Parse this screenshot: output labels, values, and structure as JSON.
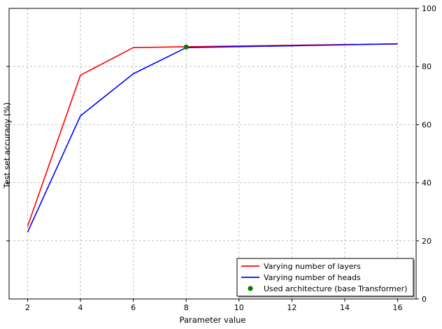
{
  "chart_data": {
    "type": "line",
    "xlabel": "Parameter value",
    "ylabel": "Test set accuracy (%)",
    "xlim": [
      1.3,
      16.7
    ],
    "ylim": [
      0,
      100
    ],
    "x_ticks": [
      2,
      4,
      6,
      8,
      10,
      12,
      14,
      16
    ],
    "y_ticks": [
      20,
      40,
      60,
      80
    ],
    "y_ticks_right": [
      0,
      20,
      40,
      60,
      80,
      100
    ],
    "grid": true,
    "legend_position": "lower-right",
    "series": [
      {
        "name": "Varying number of layers",
        "color": "#ff0000",
        "x": [
          2,
          4,
          6,
          8,
          16
        ],
        "y": [
          25,
          77,
          86.5,
          86.8,
          87.8
        ]
      },
      {
        "name": "Varying number of heads",
        "color": "#0000ff",
        "x": [
          2,
          4,
          6,
          8,
          16
        ],
        "y": [
          23,
          63,
          77.5,
          86.5,
          87.8
        ]
      }
    ],
    "points": [
      {
        "name": "Used architecture (base Transformer)",
        "color": "#008000",
        "x": 8,
        "y": 86.7
      }
    ]
  }
}
